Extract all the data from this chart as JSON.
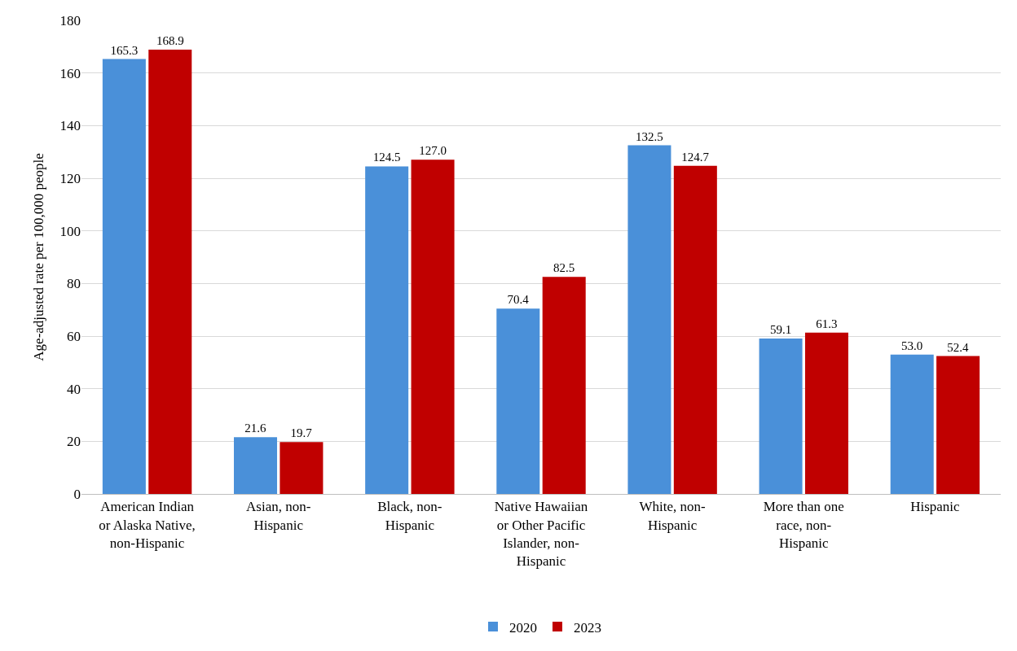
{
  "chart_data": {
    "type": "bar",
    "ylabel": "Age-adjusted rate per 100,000 people",
    "categories": [
      "American Indian or Alaska Native, non-Hispanic",
      "Asian, non-Hispanic",
      "Black, non-Hispanic",
      "Native Hawaiian or Other Pacific Islander, non-Hispanic",
      "White, non-Hispanic",
      "More than one race, non-Hispanic",
      "Hispanic"
    ],
    "series": [
      {
        "name": "2020",
        "color": "#4a90d9",
        "values": [
          165.3,
          21.6,
          124.5,
          70.4,
          132.5,
          59.1,
          53.0
        ],
        "value_labels": [
          "165.3",
          "21.6",
          "124.5",
          "70.4",
          "132.5",
          "59.1",
          "53.0"
        ]
      },
      {
        "name": "2023",
        "color": "#c00000",
        "values": [
          168.9,
          19.7,
          127.0,
          82.5,
          124.7,
          61.3,
          52.4
        ],
        "value_labels": [
          "168.9",
          "19.7",
          "127.0",
          "82.5",
          "124.7",
          "61.3",
          "52.4"
        ]
      }
    ],
    "ylim": [
      0,
      180
    ],
    "yticks": [
      0,
      20,
      40,
      60,
      80,
      100,
      120,
      140,
      160,
      180
    ],
    "grid": "y",
    "legend": "bottom"
  }
}
